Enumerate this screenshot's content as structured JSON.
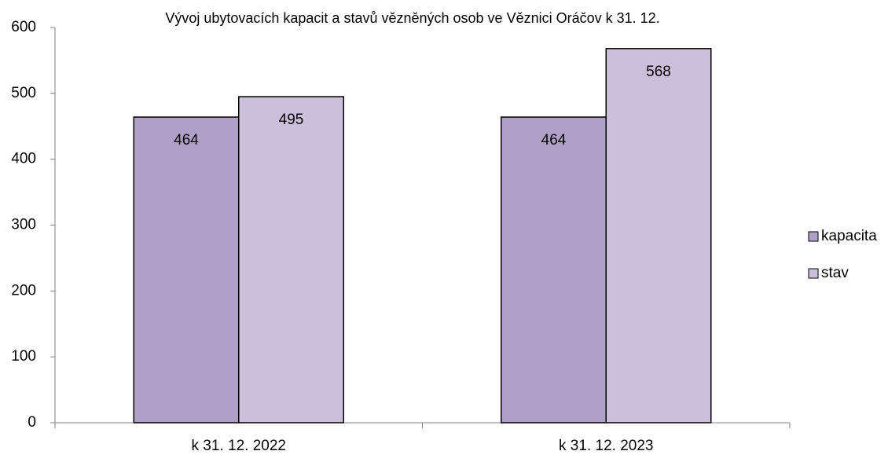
{
  "chart_data": {
    "type": "bar",
    "title": "Vývoj ubytovacích kapacit a stavů vězněných osob ve Věznici Oráčov k 31. 12.",
    "categories": [
      "k 31. 12. 2022",
      "k 31. 12. 2023"
    ],
    "series": [
      {
        "name": "kapacita",
        "color": "#b0a0c8",
        "values": [
          464,
          464
        ]
      },
      {
        "name": "stav",
        "color": "#cbc0dc",
        "values": [
          495,
          568
        ]
      }
    ],
    "ylim": [
      0,
      600
    ],
    "yticks": [
      0,
      100,
      200,
      300,
      400,
      500,
      600
    ],
    "legend": "right",
    "grid": false
  }
}
